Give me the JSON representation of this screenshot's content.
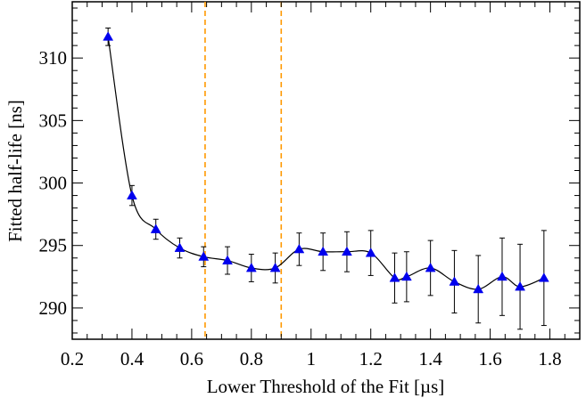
{
  "chart_data": {
    "type": "scatter",
    "xlabel": "Lower Threshold of the Fit [µs]",
    "ylabel": "Fitted half-life [ns]",
    "xlim": [
      0.2,
      1.9
    ],
    "ylim": [
      287.5,
      314.5
    ],
    "x_ticks": [
      "0.2",
      "0.4",
      "0.6",
      "0.8",
      "1",
      "1.2",
      "1.4",
      "1.6",
      "1.8"
    ],
    "y_ticks": [
      "290",
      "295",
      "300",
      "305",
      "310"
    ],
    "series": [
      {
        "marker": "triangle",
        "color": "#0000ee",
        "line_color": "#000000",
        "points": [
          {
            "x": 0.32,
            "y": 311.7,
            "err": 0.7
          },
          {
            "x": 0.4,
            "y": 299.0,
            "err": 0.8
          },
          {
            "x": 0.48,
            "y": 296.3,
            "err": 0.8
          },
          {
            "x": 0.56,
            "y": 294.8,
            "err": 0.8
          },
          {
            "x": 0.64,
            "y": 294.1,
            "err": 0.8
          },
          {
            "x": 0.72,
            "y": 293.8,
            "err": 1.1
          },
          {
            "x": 0.8,
            "y": 293.2,
            "err": 1.1
          },
          {
            "x": 0.88,
            "y": 293.2,
            "err": 1.2
          },
          {
            "x": 0.96,
            "y": 294.7,
            "err": 1.3
          },
          {
            "x": 1.04,
            "y": 294.5,
            "err": 1.5
          },
          {
            "x": 1.12,
            "y": 294.5,
            "err": 1.6
          },
          {
            "x": 1.2,
            "y": 294.4,
            "err": 1.8
          },
          {
            "x": 1.28,
            "y": 292.4,
            "err": 2.0
          },
          {
            "x": 1.32,
            "y": 292.5,
            "err": 2.0
          },
          {
            "x": 1.4,
            "y": 293.2,
            "err": 2.2
          },
          {
            "x": 1.48,
            "y": 292.1,
            "err": 2.5
          },
          {
            "x": 1.56,
            "y": 291.5,
            "err": 2.7
          },
          {
            "x": 1.64,
            "y": 292.5,
            "err": 3.1
          },
          {
            "x": 1.7,
            "y": 291.7,
            "err": 3.4
          },
          {
            "x": 1.78,
            "y": 292.4,
            "err": 3.8
          }
        ]
      }
    ],
    "vertical_lines": [
      {
        "x": 0.645,
        "style": "dashed",
        "color": "#ff9900"
      },
      {
        "x": 0.9,
        "style": "dashed",
        "color": "#ff9900"
      }
    ],
    "grid": false
  }
}
